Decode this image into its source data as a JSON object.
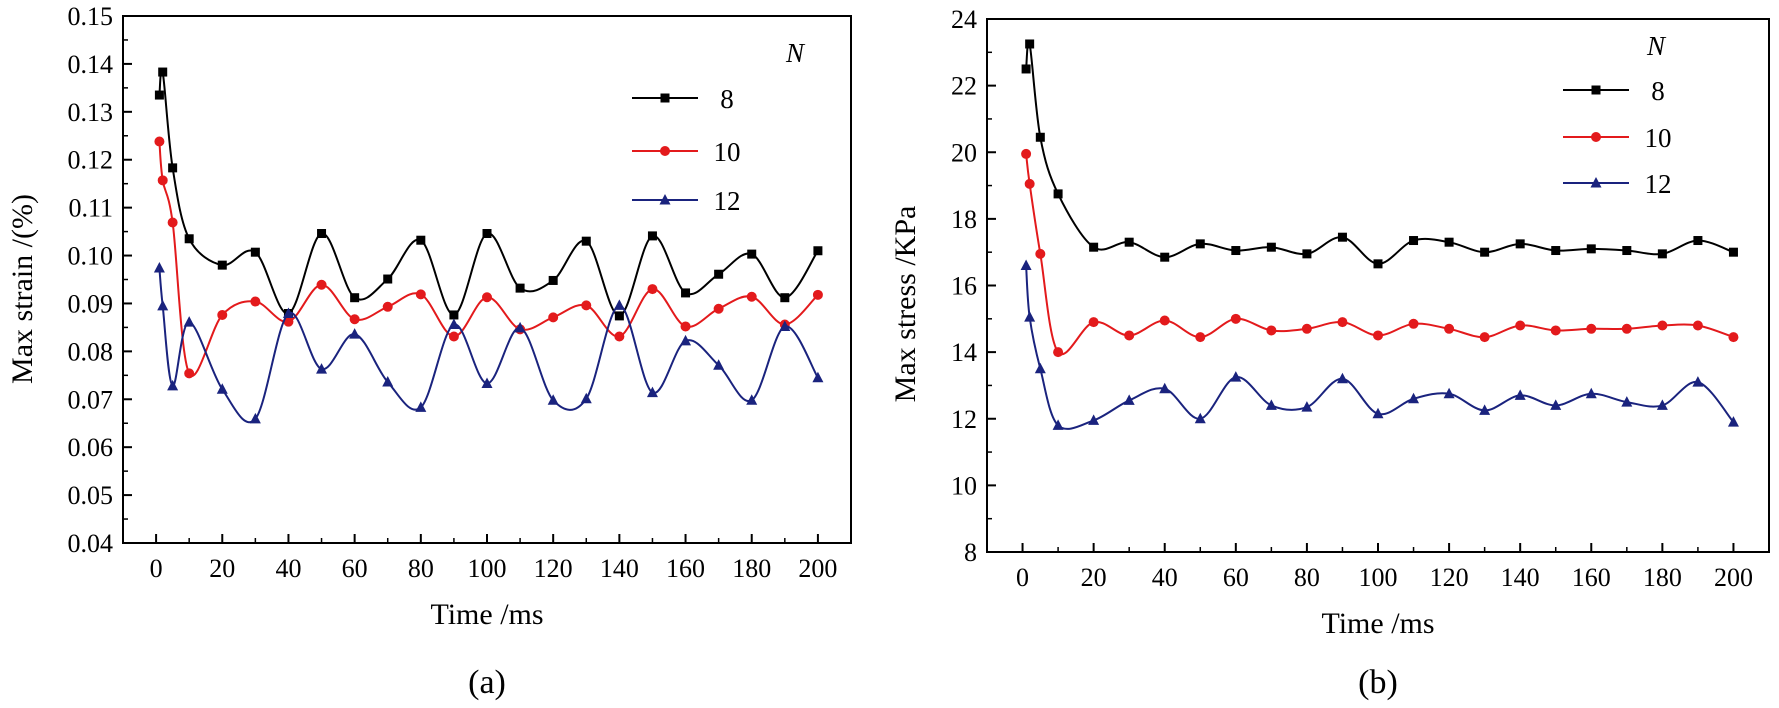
{
  "chart_data": [
    {
      "type": "line",
      "panel_label": "(a)",
      "xlabel": "Time /ms",
      "ylabel": "Max strain /(%)",
      "xlim": [
        -10,
        210
      ],
      "ylim": [
        0.04,
        0.15
      ],
      "xticks": [
        0,
        20,
        40,
        60,
        80,
        100,
        120,
        140,
        160,
        180,
        200
      ],
      "yticks": [
        0.04,
        0.05,
        0.06,
        0.07,
        0.08,
        0.09,
        0.1,
        0.11,
        0.12,
        0.13,
        0.14,
        0.15
      ],
      "ytick_labels": [
        "0.04",
        "0.05",
        "0.06",
        "0.07",
        "0.08",
        "0.09",
        "0.10",
        "0.11",
        "0.12",
        "0.13",
        "0.14",
        "0.15"
      ],
      "grid": false,
      "legend": {
        "title": "N",
        "placement": "top-right"
      },
      "series": [
        {
          "name": "8",
          "color": "#000000",
          "marker": "square",
          "x": [
            1,
            2,
            5,
            10,
            20,
            30,
            40,
            50,
            60,
            70,
            80,
            90,
            100,
            110,
            120,
            130,
            140,
            150,
            160,
            170,
            180,
            190,
            200
          ],
          "y": [
            0.1335,
            0.1383,
            0.1183,
            0.1035,
            0.098,
            0.1007,
            0.0879,
            0.1046,
            0.0912,
            0.0951,
            0.1032,
            0.0876,
            0.1046,
            0.0932,
            0.0948,
            0.103,
            0.0874,
            0.1041,
            0.0922,
            0.0961,
            0.1003,
            0.0912,
            0.101
          ]
        },
        {
          "name": "10",
          "color": "#e31a1c",
          "marker": "circle",
          "x": [
            1,
            2,
            5,
            10,
            20,
            30,
            40,
            50,
            60,
            70,
            80,
            90,
            100,
            110,
            120,
            130,
            140,
            150,
            160,
            170,
            180,
            190,
            200
          ],
          "y": [
            0.1238,
            0.1157,
            0.1069,
            0.0754,
            0.0876,
            0.0904,
            0.0862,
            0.0939,
            0.0867,
            0.0893,
            0.0919,
            0.0831,
            0.0913,
            0.0846,
            0.0871,
            0.0896,
            0.0831,
            0.093,
            0.0852,
            0.0889,
            0.0914,
            0.0856,
            0.0918
          ]
        },
        {
          "name": "12",
          "color": "#1a237e",
          "marker": "triangle",
          "x": [
            1,
            2,
            5,
            10,
            20,
            30,
            40,
            50,
            60,
            70,
            80,
            90,
            100,
            110,
            120,
            130,
            140,
            150,
            160,
            170,
            180,
            190,
            200
          ],
          "y": [
            0.0974,
            0.0895,
            0.0728,
            0.0861,
            0.0721,
            0.0659,
            0.0879,
            0.0763,
            0.0836,
            0.0736,
            0.0683,
            0.0856,
            0.0733,
            0.0849,
            0.0698,
            0.0701,
            0.0896,
            0.0714,
            0.0822,
            0.0771,
            0.0698,
            0.0852,
            0.0745
          ]
        }
      ]
    },
    {
      "type": "line",
      "panel_label": "(b)",
      "xlabel": "Time /ms",
      "ylabel": "Max stress /KPa",
      "xlim": [
        -10,
        210
      ],
      "ylim": [
        8,
        24
      ],
      "xticks": [
        0,
        20,
        40,
        60,
        80,
        100,
        120,
        140,
        160,
        180,
        200
      ],
      "yticks": [
        8,
        10,
        12,
        14,
        16,
        18,
        20,
        22,
        24
      ],
      "ytick_labels": [
        "8",
        "10",
        "12",
        "14",
        "16",
        "18",
        "20",
        "22",
        "24"
      ],
      "grid": false,
      "legend": {
        "title": "N",
        "placement": "top-right"
      },
      "series": [
        {
          "name": "8",
          "color": "#000000",
          "marker": "square",
          "x": [
            1,
            2,
            5,
            10,
            20,
            30,
            40,
            50,
            60,
            70,
            80,
            90,
            100,
            110,
            120,
            130,
            140,
            150,
            160,
            170,
            180,
            190,
            200
          ],
          "y": [
            22.5,
            23.25,
            20.45,
            18.75,
            17.15,
            17.3,
            16.85,
            17.25,
            17.05,
            17.15,
            16.95,
            17.45,
            16.65,
            17.35,
            17.3,
            17.0,
            17.25,
            17.05,
            17.1,
            17.05,
            16.95,
            17.35,
            17.0
          ]
        },
        {
          "name": "10",
          "color": "#e31a1c",
          "marker": "circle",
          "x": [
            1,
            2,
            5,
            10,
            20,
            30,
            40,
            50,
            60,
            70,
            80,
            90,
            100,
            110,
            120,
            130,
            140,
            150,
            160,
            170,
            180,
            190,
            200
          ],
          "y": [
            19.95,
            19.05,
            16.95,
            14.0,
            14.9,
            14.5,
            14.95,
            14.45,
            15.0,
            14.65,
            14.7,
            14.9,
            14.5,
            14.85,
            14.7,
            14.45,
            14.8,
            14.65,
            14.7,
            14.7,
            14.8,
            14.8,
            14.45
          ]
        },
        {
          "name": "12",
          "color": "#1a237e",
          "marker": "triangle",
          "x": [
            1,
            2,
            5,
            10,
            20,
            30,
            40,
            50,
            60,
            70,
            80,
            90,
            100,
            110,
            120,
            130,
            140,
            150,
            160,
            170,
            180,
            190,
            200
          ],
          "y": [
            16.6,
            15.05,
            13.5,
            11.8,
            11.95,
            12.55,
            12.9,
            12.0,
            13.25,
            12.4,
            12.35,
            13.2,
            12.15,
            12.6,
            12.75,
            12.25,
            12.7,
            12.4,
            12.75,
            12.5,
            12.4,
            13.1,
            11.9
          ]
        }
      ]
    }
  ]
}
